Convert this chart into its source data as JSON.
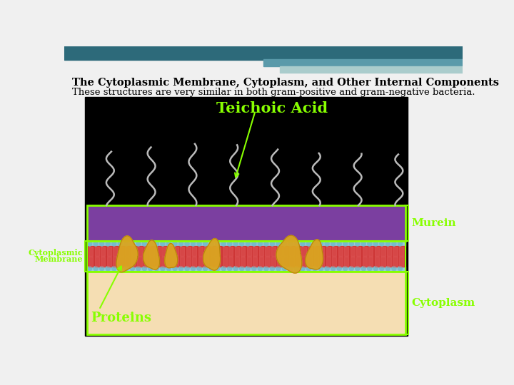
{
  "title": "The Cytoplasmic Membrane, Cytoplasm, and Other Internal Components",
  "subtitle": "These structures are very similar in both gram-positive and gram-negative bacteria.",
  "title_color": "#000000",
  "subtitle_color": "#000000",
  "bg_color": "#f0f0f0",
  "diagram_bg": "#000000",
  "murein_layer_color": "#7B3FA0",
  "membrane_red_color": "#cc3333",
  "membrane_blue_color": "#99ccdd",
  "cytoplasm_color": "#f5deb3",
  "label_color": "#88ff00",
  "teichoic_label": "Teichoic Acid",
  "murein_label": "Murein",
  "cytoplasmic_label1": "Cytoplasmic",
  "cytoplasmic_label2": "Membrane",
  "proteins_label": "Proteins",
  "cytoplasm_label": "Cytoplasm",
  "top_bar_color": "#2d6a7a",
  "top_bar2_color": "#5a9aaa",
  "top_bar3_color": "#aacccc",
  "header_bg": "#e8e8e8",
  "chain_color": "#bbbbbb",
  "protein_color": "#DAA520",
  "protein_edge": "#B8860B"
}
